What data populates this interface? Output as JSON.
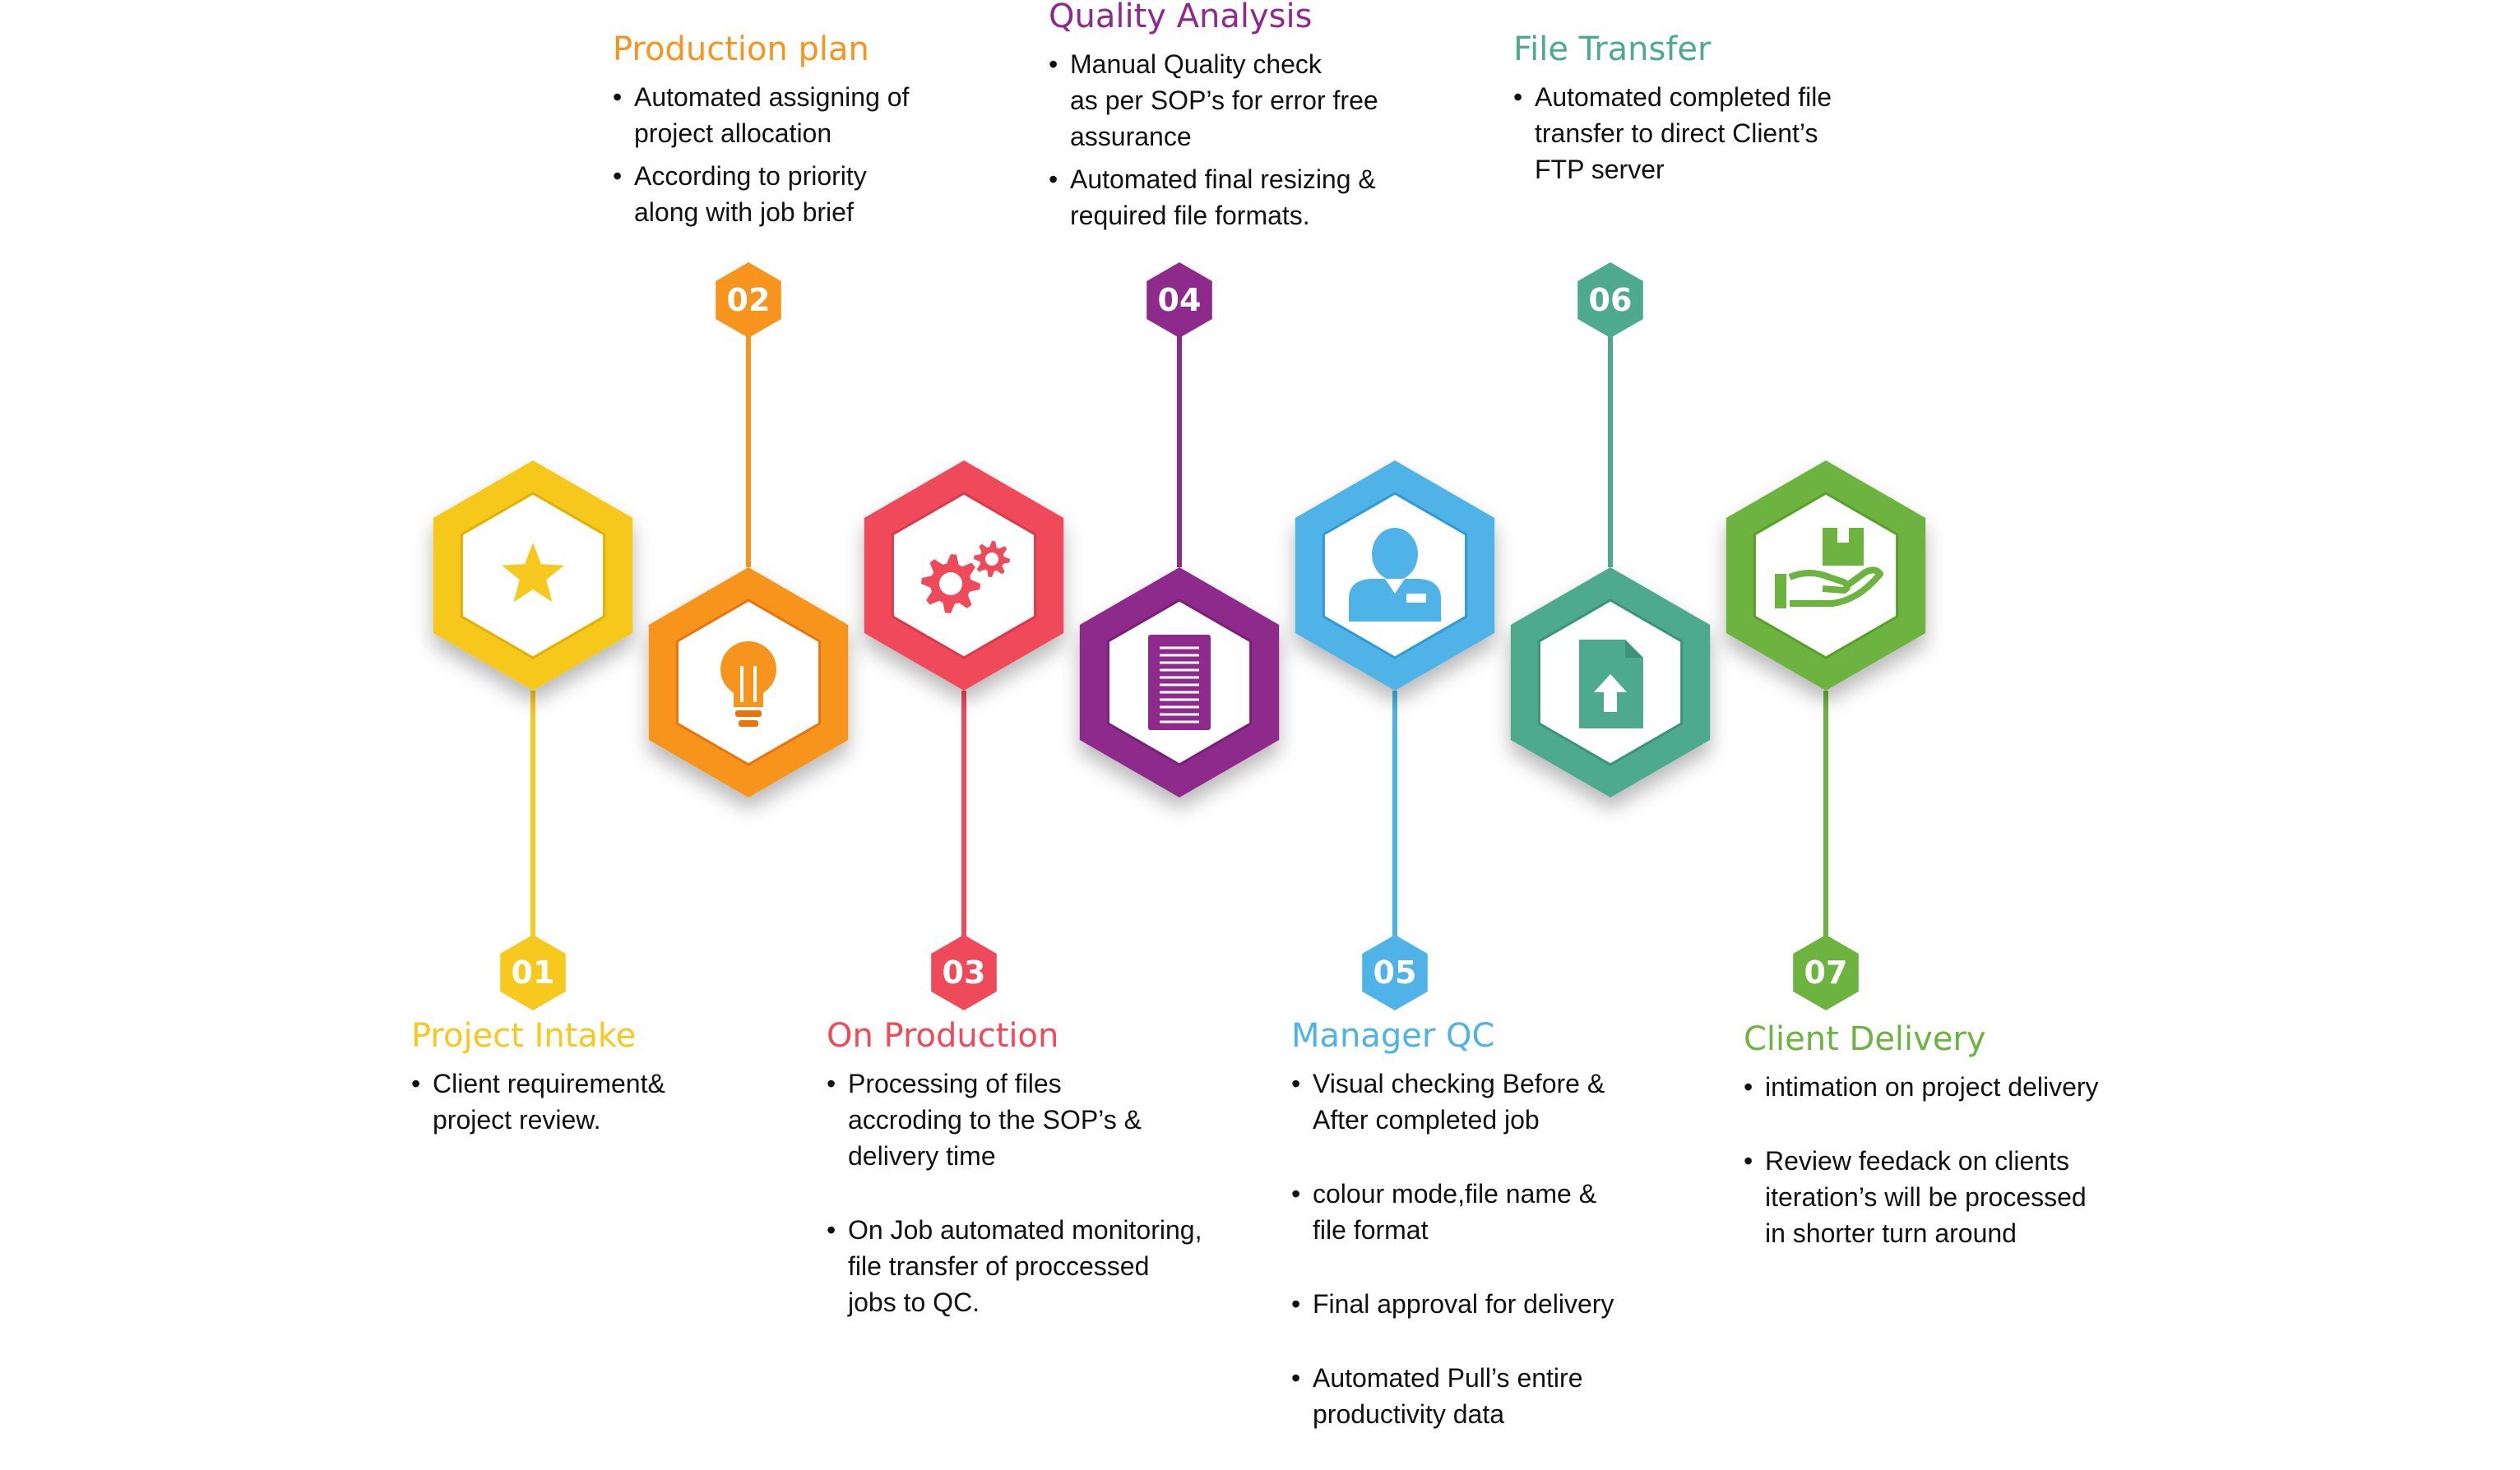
{
  "steps": [
    {
      "num": "01",
      "title": "Project Intake",
      "color": "#F7C81E",
      "dark": "#E3B000",
      "icon": "star-icon",
      "side": "bottom",
      "bullets": [
        "Client requirement&\nproject review."
      ]
    },
    {
      "num": "02",
      "title": "Production plan",
      "color": "#F7941D",
      "dark": "#E9730C",
      "icon": "lightbulb-icon",
      "side": "top",
      "bullets": [
        "Automated assigning of\nproject allocation",
        "According to priority\nalong with job brief"
      ]
    },
    {
      "num": "03",
      "title": "On Production",
      "color": "#EF4A5A",
      "dark": "#D93A4A",
      "icon": "gears-icon",
      "side": "bottom",
      "bullets": [
        "Processing of files\naccroding to the SOP’s &\ndelivery time",
        "On Job automated monitoring,\nfile transfer of proccessed\njobs to QC."
      ]
    },
    {
      "num": "04",
      "title": "Quality Analysis",
      "color": "#8E2A8B",
      "dark": "#7A1F78",
      "icon": "document-icon",
      "side": "top",
      "bullets": [
        "Manual Quality check\nas per SOP’s for error free\nassurance",
        "Automated final resizing &\nrequired file formats."
      ]
    },
    {
      "num": "05",
      "title": "Manager QC",
      "color": "#4FB3E8",
      "dark": "#2E9AD6",
      "icon": "manager-icon",
      "side": "bottom",
      "bullets": [
        "Visual checking  Before &\nAfter completed job",
        "colour mode,file name &\nfile format",
        "Final approval for delivery",
        "Automated Pull’s entire\nproductivity data"
      ]
    },
    {
      "num": "06",
      "title": "File Transfer",
      "color": "#4DAA8C",
      "dark": "#3A9477",
      "icon": "file-upload-icon",
      "side": "top",
      "bullets": [
        "Automated completed file\ntransfer to direct Client’s\nFTP server"
      ]
    },
    {
      "num": "07",
      "title": "Client Delivery",
      "color": "#6DB33F",
      "dark": "#56A02A",
      "icon": "hand-package-icon",
      "side": "bottom",
      "bullets": [
        "intimation on project delivery",
        "Review feedack on clients\niteration’s will be processed\nin shorter turn around"
      ]
    }
  ]
}
